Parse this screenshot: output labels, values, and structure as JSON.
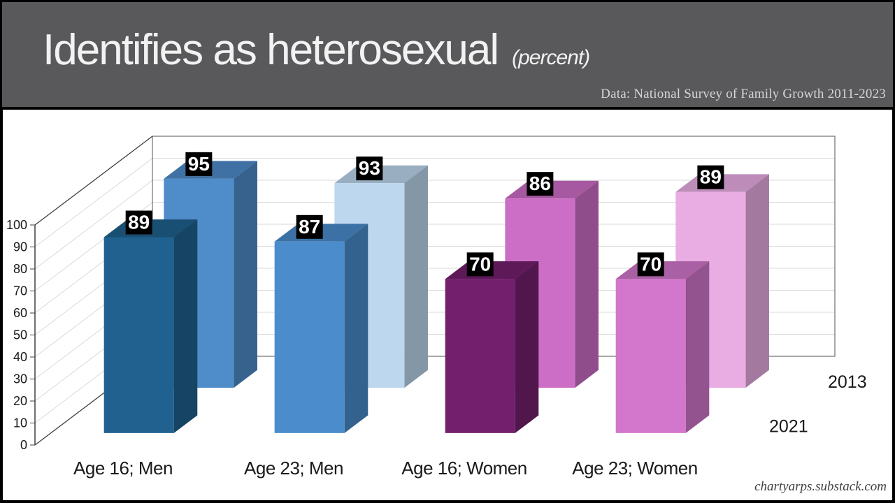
{
  "header": {
    "title": "Identifies as heterosexual",
    "title_suffix": "(percent)",
    "source_note": "Data: National Survey of Family Growth 2011-2023",
    "background_color": "#59595b",
    "text_color": "#f2f2f2"
  },
  "chart_data": {
    "type": "bar",
    "projection": "3d-clustered",
    "title": "Identifies as heterosexual (percent)",
    "categories": [
      "Age 16; Men",
      "Age 23; Men",
      "Age 16; Women",
      "Age 23; Women"
    ],
    "series": [
      {
        "name": "2013",
        "row": "back",
        "values": [
          95,
          93,
          86,
          89
        ],
        "face_colors": [
          "#4f8cca",
          "#bdd7ee",
          "#cd6ec6",
          "#e9ade4"
        ]
      },
      {
        "name": "2021",
        "row": "front",
        "values": [
          89,
          87,
          70,
          70
        ],
        "face_colors": [
          "#20618f",
          "#4a8ccc",
          "#731f6d",
          "#d277cb"
        ]
      }
    ],
    "ylim": [
      0,
      100
    ],
    "ytick_step": 10,
    "ytick_labels": [
      "0",
      "10",
      "20",
      "30",
      "40",
      "50",
      "60",
      "70",
      "80",
      "90",
      "100"
    ],
    "grid": true,
    "legend_position": "depth-axis-right",
    "value_labels": [
      95,
      93,
      86,
      89,
      89,
      87,
      70,
      70
    ],
    "value_label_style": {
      "background": "#000000",
      "color": "#ffffff"
    },
    "axis_text_color": "#1a1a1a",
    "gridline_color": "#d9d9d9",
    "frame_color": "#404040"
  },
  "footer": {
    "attribution": "chartyarps.substack.com"
  }
}
